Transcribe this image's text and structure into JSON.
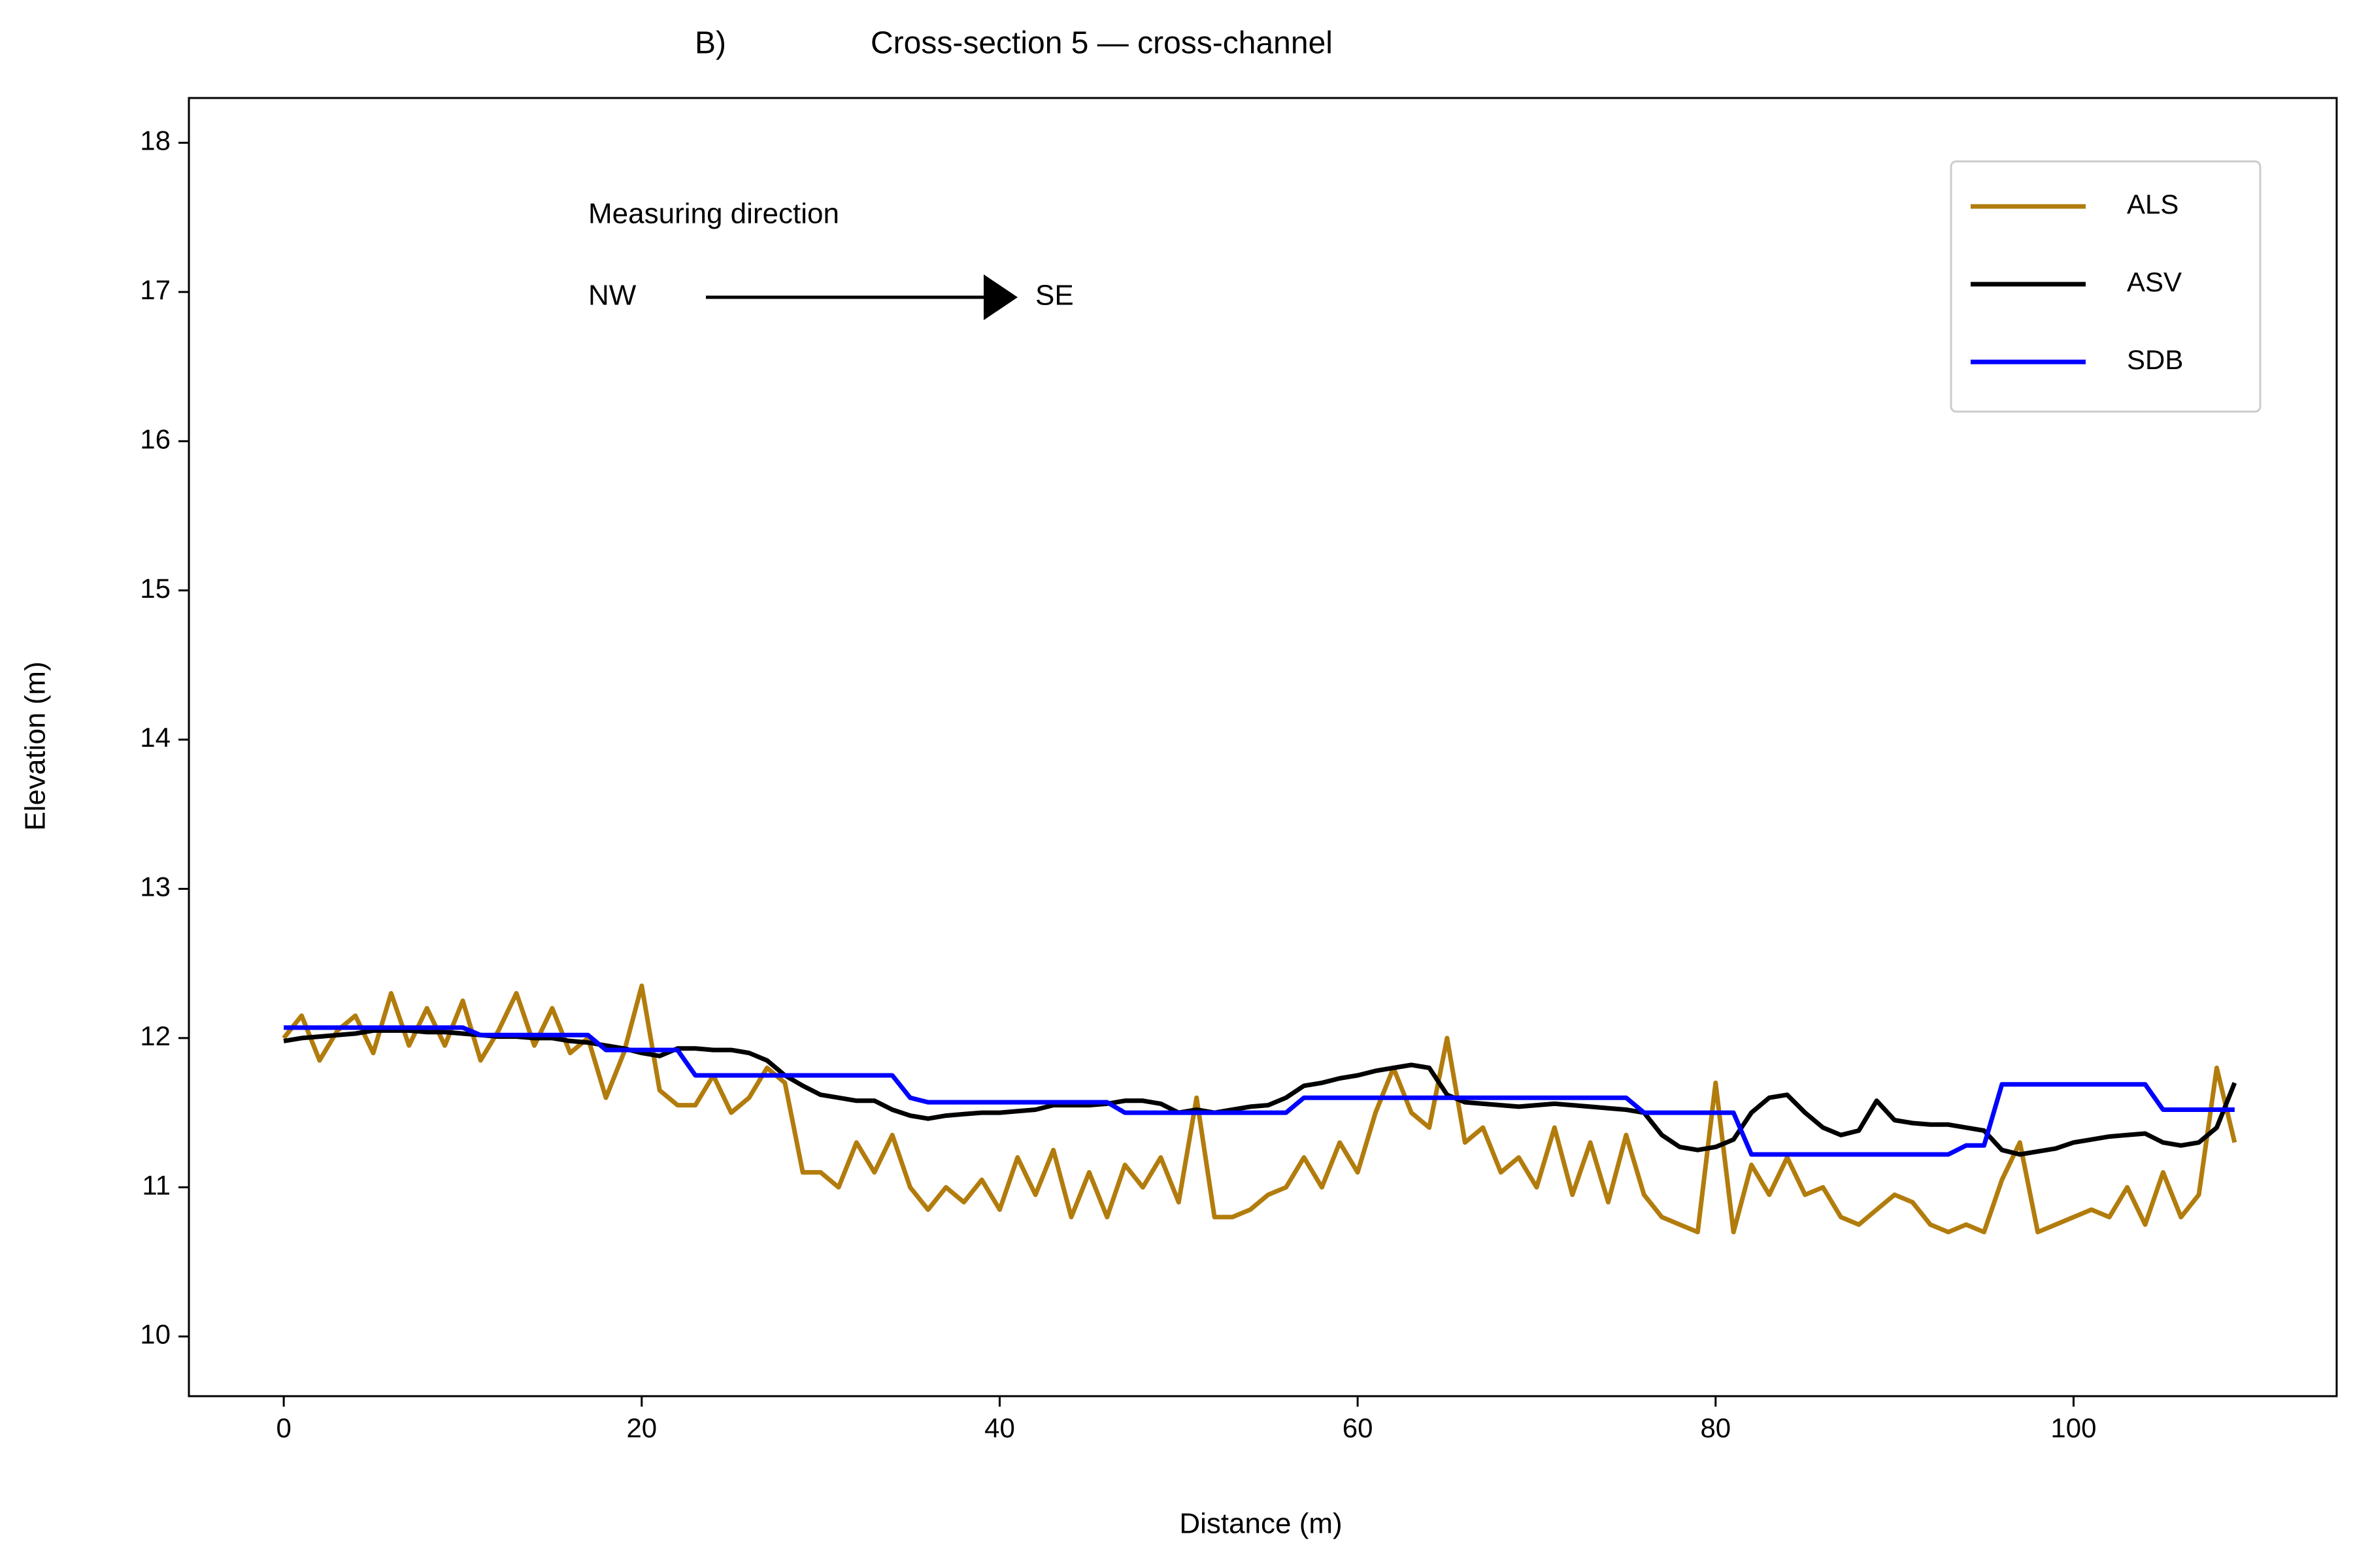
{
  "chart_data": {
    "type": "line",
    "panel_label": "B)",
    "title": "Cross-section 5 — cross-channel",
    "xlabel": "Distance (m)",
    "ylabel": "Elevation (m)",
    "annotations": {
      "text": "Measuring direction",
      "from": "NW",
      "to": "SE"
    },
    "legend": "upper right",
    "xlim": [
      -5.3,
      114.7
    ],
    "ylim": [
      9.6,
      18.3
    ],
    "xticks": [
      0,
      20,
      40,
      60,
      80,
      100
    ],
    "yticks": [
      10,
      11,
      12,
      13,
      14,
      15,
      16,
      17,
      18
    ],
    "x": [
      0,
      1,
      2,
      3,
      4,
      5,
      6,
      7,
      8,
      9,
      10,
      11,
      12,
      13,
      14,
      15,
      16,
      17,
      18,
      19,
      20,
      21,
      22,
      23,
      24,
      25,
      26,
      27,
      28,
      29,
      30,
      31,
      32,
      33,
      34,
      35,
      36,
      37,
      38,
      39,
      40,
      41,
      42,
      43,
      44,
      45,
      46,
      47,
      48,
      49,
      50,
      51,
      52,
      53,
      54,
      55,
      56,
      57,
      58,
      59,
      60,
      61,
      62,
      63,
      64,
      65,
      66,
      67,
      68,
      69,
      70,
      71,
      72,
      73,
      74,
      75,
      76,
      77,
      78,
      79,
      80,
      81,
      82,
      83,
      84,
      85,
      86,
      87,
      88,
      89,
      90,
      91,
      92,
      93,
      94,
      95,
      96,
      97,
      98,
      99,
      100,
      101,
      102,
      103,
      104,
      105,
      106,
      107,
      108,
      109
    ],
    "series": [
      {
        "name": "ALS",
        "color": "#b27c0d",
        "values": [
          12.0,
          12.15,
          11.85,
          12.05,
          12.15,
          11.9,
          12.3,
          11.95,
          12.2,
          11.95,
          12.25,
          11.85,
          12.05,
          12.3,
          11.95,
          12.2,
          11.9,
          12.0,
          11.6,
          11.9,
          12.35,
          11.65,
          11.55,
          11.55,
          11.75,
          11.5,
          11.6,
          11.8,
          11.7,
          11.1,
          11.1,
          11.0,
          11.3,
          11.1,
          11.35,
          11.0,
          10.85,
          11.0,
          10.9,
          11.05,
          10.85,
          11.2,
          10.95,
          11.25,
          10.8,
          11.1,
          10.8,
          11.15,
          11.0,
          11.2,
          10.9,
          11.6,
          10.8,
          10.8,
          10.85,
          10.95,
          11.0,
          11.2,
          11.0,
          11.3,
          11.1,
          11.5,
          11.8,
          11.5,
          11.4,
          12.0,
          11.3,
          11.4,
          11.1,
          11.2,
          11.0,
          11.4,
          10.95,
          11.3,
          10.9,
          11.35,
          10.95,
          10.8,
          10.75,
          10.7,
          11.7,
          10.7,
          11.15,
          10.95,
          11.2,
          10.95,
          11.0,
          10.8,
          10.75,
          10.85,
          10.95,
          10.9,
          10.75,
          10.7,
          10.75,
          10.7,
          11.05,
          11.3,
          10.7,
          10.75,
          10.8,
          10.85,
          10.8,
          11.0,
          10.75,
          11.1,
          10.8,
          10.95,
          11.8,
          11.3
        ]
      },
      {
        "name": "ASV",
        "color": "#000000",
        "values": [
          11.98,
          12.0,
          12.01,
          12.02,
          12.03,
          12.05,
          12.05,
          12.05,
          12.04,
          12.04,
          12.03,
          12.02,
          12.01,
          12.01,
          12.0,
          12.0,
          11.98,
          11.97,
          11.95,
          11.93,
          11.9,
          11.88,
          11.93,
          11.93,
          11.92,
          11.92,
          11.9,
          11.85,
          11.75,
          11.68,
          11.62,
          11.6,
          11.58,
          11.58,
          11.52,
          11.48,
          11.46,
          11.48,
          11.49,
          11.5,
          11.5,
          11.51,
          11.52,
          11.55,
          11.55,
          11.55,
          11.56,
          11.58,
          11.58,
          11.56,
          11.5,
          11.52,
          11.5,
          11.52,
          11.54,
          11.55,
          11.6,
          11.68,
          11.7,
          11.73,
          11.75,
          11.78,
          11.8,
          11.82,
          11.8,
          11.62,
          11.57,
          11.56,
          11.55,
          11.54,
          11.55,
          11.56,
          11.55,
          11.54,
          11.53,
          11.52,
          11.5,
          11.35,
          11.27,
          11.25,
          11.27,
          11.32,
          11.5,
          11.6,
          11.62,
          11.5,
          11.4,
          11.35,
          11.38,
          11.58,
          11.45,
          11.43,
          11.42,
          11.42,
          11.4,
          11.38,
          11.25,
          11.22,
          11.24,
          11.26,
          11.3,
          11.32,
          11.34,
          11.35,
          11.36,
          11.3,
          11.28,
          11.3,
          11.4,
          11.7
        ]
      },
      {
        "name": "SDB",
        "color": "#0000ff",
        "values": [
          12.07,
          12.07,
          12.07,
          12.07,
          12.07,
          12.07,
          12.07,
          12.07,
          12.07,
          12.07,
          12.07,
          12.02,
          12.02,
          12.02,
          12.02,
          12.02,
          12.02,
          12.02,
          11.92,
          11.92,
          11.92,
          11.92,
          11.92,
          11.75,
          11.75,
          11.75,
          11.75,
          11.75,
          11.75,
          11.75,
          11.75,
          11.75,
          11.75,
          11.75,
          11.75,
          11.6,
          11.57,
          11.57,
          11.57,
          11.57,
          11.57,
          11.57,
          11.57,
          11.57,
          11.57,
          11.57,
          11.57,
          11.5,
          11.5,
          11.5,
          11.5,
          11.5,
          11.5,
          11.5,
          11.5,
          11.5,
          11.5,
          11.6,
          11.6,
          11.6,
          11.6,
          11.6,
          11.6,
          11.6,
          11.6,
          11.6,
          11.6,
          11.6,
          11.6,
          11.6,
          11.6,
          11.6,
          11.6,
          11.6,
          11.6,
          11.6,
          11.5,
          11.5,
          11.5,
          11.5,
          11.5,
          11.5,
          11.22,
          11.22,
          11.22,
          11.22,
          11.22,
          11.22,
          11.22,
          11.22,
          11.22,
          11.22,
          11.22,
          11.22,
          11.28,
          11.28,
          11.69,
          11.69,
          11.69,
          11.69,
          11.69,
          11.69,
          11.69,
          11.69,
          11.69,
          11.52,
          11.52,
          11.52,
          11.52,
          11.52
        ]
      }
    ]
  }
}
